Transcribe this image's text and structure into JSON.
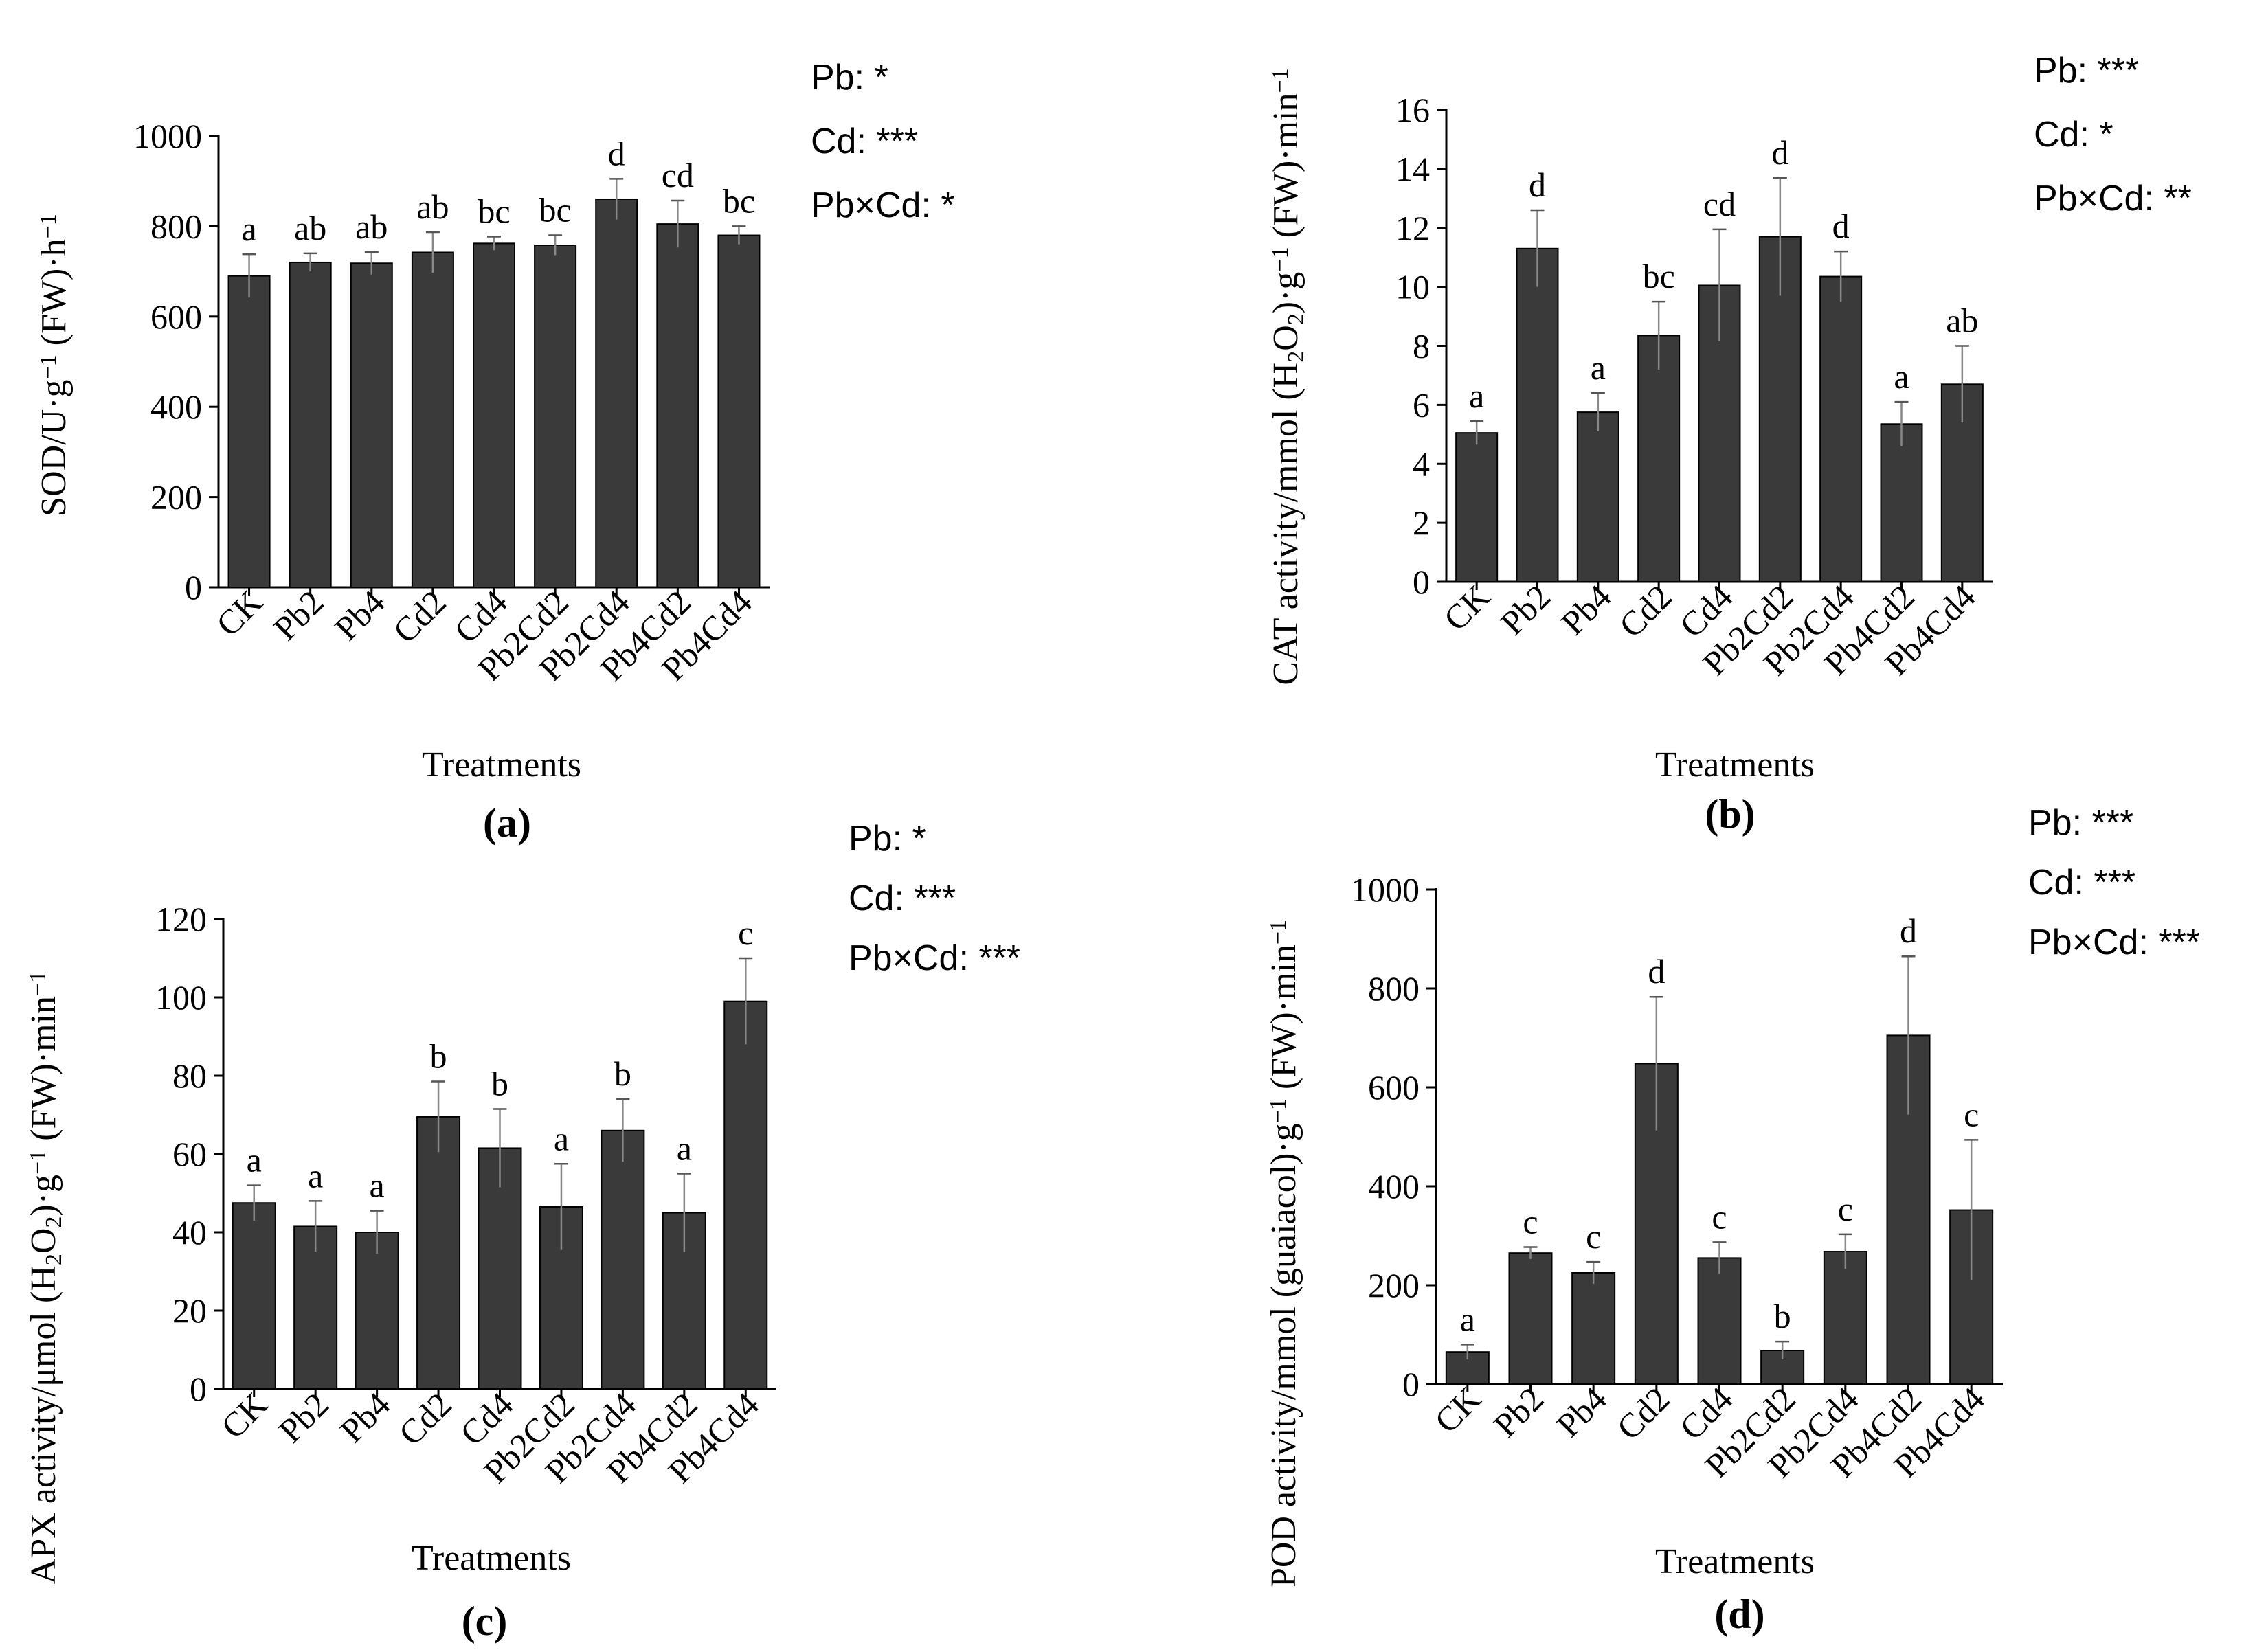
{
  "chart_data": [
    {
      "id": "a",
      "type": "bar",
      "panel_label": "(a)",
      "xlabel": "Treatments",
      "ylabel_parts": [
        "SOD/U·g",
        "−1",
        " (FW)·h",
        "−1"
      ],
      "ylim": [
        0,
        1000
      ],
      "yticks": [
        "0",
        "200",
        "400",
        "600",
        "800",
        "1000"
      ],
      "categories": [
        "CK",
        "Pb2",
        "Pb4",
        "Cd2",
        "Cd4",
        "Pb2Cd2",
        "Pb2Cd4",
        "Pb4Cd2",
        "Pb4Cd4"
      ],
      "values": [
        690,
        720,
        718,
        742,
        762,
        758,
        860,
        805,
        780
      ],
      "errors": [
        48,
        20,
        25,
        45,
        15,
        22,
        45,
        52,
        20
      ],
      "letters": [
        "a",
        "ab",
        "ab",
        "ab",
        "bc",
        "bc",
        "d",
        "cd",
        "bc"
      ],
      "stats": [
        "Pb: *",
        "Cd: ***",
        "Pb×Cd: *"
      ],
      "bar_color": "#3a3a3a"
    },
    {
      "id": "b",
      "type": "bar",
      "panel_label": "(b)",
      "xlabel": "Treatments",
      "ylabel_parts": [
        "CAT activity/mmol (H",
        "2",
        "O",
        "2",
        ")·g",
        "−1",
        " (FW)·min",
        "−1"
      ],
      "ylim": [
        0,
        16
      ],
      "yticks": [
        "0",
        "2",
        "4",
        "6",
        "8",
        "10",
        "12",
        "14",
        "16"
      ],
      "categories": [
        "CK",
        "Pb2",
        "Pb4",
        "Cd2",
        "Cd4",
        "Pb2Cd2",
        "Pb2Cd4",
        "Pb4Cd2",
        "Pb4Cd4"
      ],
      "values": [
        5.05,
        11.3,
        5.75,
        8.35,
        10.05,
        11.7,
        10.35,
        5.35,
        6.7
      ],
      "errors": [
        0.4,
        1.3,
        0.65,
        1.15,
        1.9,
        2.0,
        0.85,
        0.75,
        1.3
      ],
      "letters": [
        "a",
        "d",
        "a",
        "bc",
        "cd",
        "d",
        "d",
        "a",
        "ab"
      ],
      "stats": [
        "Pb: ***",
        "Cd: *",
        "Pb×Cd: **"
      ],
      "bar_color": "#3a3a3a"
    },
    {
      "id": "c",
      "type": "bar",
      "panel_label": "(c)",
      "xlabel": "Treatments",
      "ylabel_parts": [
        "APX activity/μmol (H",
        "2",
        "O",
        "2",
        ")·g",
        "−1",
        " (FW)·min",
        "−1"
      ],
      "ylim": [
        0,
        120
      ],
      "yticks": [
        "0",
        "20",
        "40",
        "60",
        "80",
        "100",
        "120"
      ],
      "categories": [
        "CK",
        "Pb2",
        "Pb4",
        "Cd2",
        "Cd4",
        "Pb2Cd2",
        "Pb2Cd4",
        "Pb4Cd2",
        "Pb4Cd4"
      ],
      "values": [
        47.5,
        41.5,
        40,
        69.5,
        61.5,
        46.5,
        66,
        45,
        99
      ],
      "errors": [
        4.5,
        6.5,
        5.5,
        9,
        10,
        11,
        8,
        10,
        11
      ],
      "letters": [
        "a",
        "a",
        "a",
        "b",
        "b",
        "a",
        "b",
        "a",
        "c"
      ],
      "stats": [
        "Pb: *",
        "Cd: ***",
        "Pb×Cd: ***"
      ],
      "bar_color": "#3a3a3a"
    },
    {
      "id": "d",
      "type": "bar",
      "panel_label": "(d)",
      "xlabel": "Treatments",
      "ylabel_parts": [
        "POD activity/mmol (guaiacol)·g",
        "−1",
        " (FW)·min",
        "−1"
      ],
      "ylim": [
        0,
        1000
      ],
      "yticks": [
        "0",
        "200",
        "400",
        "600",
        "800",
        "1000"
      ],
      "categories": [
        "CK",
        "Pb2",
        "Pb4",
        "Cd2",
        "Cd4",
        "Pb2Cd2",
        "Pb2Cd4",
        "Pb4Cd2",
        "Pb4Cd4"
      ],
      "values": [
        65,
        265,
        225,
        648,
        255,
        68,
        268,
        705,
        352
      ],
      "errors": [
        15,
        12,
        22,
        135,
        32,
        18,
        35,
        160,
        142
      ],
      "letters": [
        "a",
        "c",
        "c",
        "d",
        "c",
        "b",
        "c",
        "d",
        "c"
      ],
      "stats": [
        "Pb: ***",
        "Cd: ***",
        "Pb×Cd: ***"
      ],
      "bar_color": "#3a3a3a"
    }
  ]
}
